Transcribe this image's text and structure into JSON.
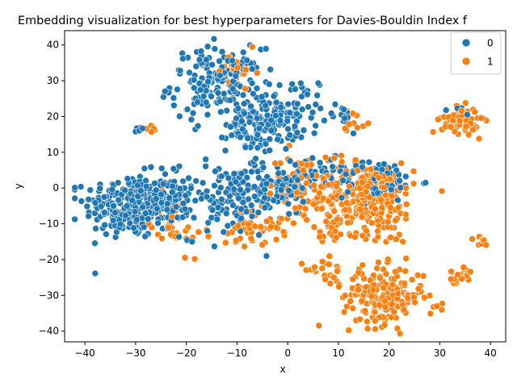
{
  "chart_data": {
    "type": "scatter",
    "title": "Embedding visualization for best hyperparameters for Davies-Bouldin Index f",
    "xlabel": "x",
    "ylabel": "y",
    "xlim": [
      -44,
      43
    ],
    "ylim": [
      -43,
      44
    ],
    "xticks": [
      -40,
      -30,
      -20,
      -10,
      0,
      10,
      20,
      30,
      40
    ],
    "yticks": [
      -40,
      -30,
      -20,
      -10,
      0,
      10,
      20,
      30,
      40
    ],
    "grid": false,
    "legend": {
      "placement": "top-right",
      "entries": [
        "0",
        "1"
      ]
    },
    "series": [
      {
        "name": "0",
        "color": "#1f77b4",
        "clusters": [
          {
            "cx": -31,
            "cy": -5,
            "sx": 4.5,
            "sy": 4.5,
            "n": 260
          },
          {
            "cx": -22,
            "cy": -2,
            "sx": 2.5,
            "sy": 4,
            "n": 60
          },
          {
            "cx": -14,
            "cy": 29,
            "sx": 4.5,
            "sy": 5,
            "n": 170
          },
          {
            "cx": -5,
            "cy": 18,
            "sx": 3.5,
            "sy": 4,
            "n": 130
          },
          {
            "cx": 2,
            "cy": 23,
            "sx": 3,
            "sy": 4,
            "n": 50
          },
          {
            "cx": -11,
            "cy": -4,
            "sx": 5,
            "sy": 5,
            "n": 130
          },
          {
            "cx": -2,
            "cy": 1,
            "sx": 4,
            "sy": 3,
            "n": 70
          },
          {
            "cx": 8,
            "cy": 5,
            "sx": 3,
            "sy": 3,
            "n": 40
          },
          {
            "cx": 18,
            "cy": 2,
            "sx": 4,
            "sy": 3,
            "n": 70
          },
          {
            "cx": 34,
            "cy": 22,
            "sx": 1,
            "sy": 0.8,
            "n": 5
          },
          {
            "cx": -29,
            "cy": 16,
            "sx": 0.6,
            "sy": 0.5,
            "n": 5
          },
          {
            "cx": 10,
            "cy": 20,
            "sx": 1.5,
            "sy": 2,
            "n": 12
          }
        ]
      },
      {
        "name": "1",
        "color": "#ff7f0e",
        "clusters": [
          {
            "cx": 16,
            "cy": -3,
            "sx": 4.5,
            "sy": 5,
            "n": 250
          },
          {
            "cx": 19,
            "cy": -30,
            "sx": 4,
            "sy": 4,
            "n": 200
          },
          {
            "cx": 34,
            "cy": 19,
            "sx": 1.8,
            "sy": 1.8,
            "n": 80
          },
          {
            "cx": 34,
            "cy": -25,
            "sx": 1.2,
            "sy": 1.2,
            "n": 25
          },
          {
            "cx": -10,
            "cy": 32,
            "sx": 2,
            "sy": 3,
            "n": 25
          },
          {
            "cx": 4,
            "cy": 0,
            "sx": 4,
            "sy": 5,
            "n": 90
          },
          {
            "cx": -7,
            "cy": -11,
            "sx": 3,
            "sy": 2.5,
            "n": 50
          },
          {
            "cx": -22,
            "cy": -10,
            "sx": 2.5,
            "sy": 4,
            "n": 35
          },
          {
            "cx": 8,
            "cy": -24,
            "sx": 1.2,
            "sy": 2,
            "n": 15
          },
          {
            "cx": 4,
            "cy": -22,
            "sx": 1,
            "sy": 0.6,
            "n": 6
          },
          {
            "cx": 38,
            "cy": -15,
            "sx": 0.8,
            "sy": 0.8,
            "n": 8
          },
          {
            "cx": -27,
            "cy": 16,
            "sx": 0.5,
            "sy": 0.5,
            "n": 5
          },
          {
            "cx": 30,
            "cy": -33,
            "sx": 0.8,
            "sy": 0.6,
            "n": 6
          },
          {
            "cx": 21,
            "cy": -14,
            "sx": 1.2,
            "sy": 0.6,
            "n": 8
          },
          {
            "cx": 13,
            "cy": 19,
            "sx": 1.3,
            "sy": 1.5,
            "n": 10
          },
          {
            "cx": 8,
            "cy": -12,
            "sx": 1.5,
            "sy": 3,
            "n": 15
          }
        ]
      }
    ]
  }
}
